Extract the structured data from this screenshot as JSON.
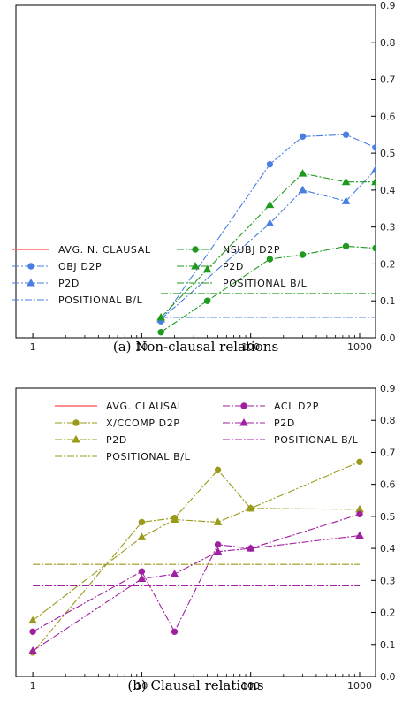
{
  "chart_data": [
    {
      "type": "line",
      "caption": "(a) Non-clausal relations",
      "xscale": "log",
      "xlim": [
        0.7,
        1400
      ],
      "ylim": [
        0,
        0.9
      ],
      "x_ticks": [
        1,
        10,
        100,
        1000
      ],
      "y_ticks": [
        0,
        0.1,
        0.2,
        0.3,
        0.4,
        0.5,
        0.6,
        0.7,
        0.8,
        0.9
      ],
      "y_axis_side": "right",
      "legend_columns": [
        [
          "AVG. N. CLAUSAL",
          "OBJ D2P",
          "P2D",
          "POSITIONAL B/L"
        ],
        [
          "NSUBJ D2P",
          "P2D",
          "POSITIONAL B/L"
        ]
      ],
      "series": [
        {
          "name": "AVG. N. CLAUSAL",
          "color": "#ff6666",
          "style": "solid",
          "marker": "none",
          "points": []
        },
        {
          "name": "OBJ D2P",
          "color": "#4a7fe0",
          "style": "dashdot",
          "marker": "circle",
          "points": [
            [
              15,
              0.045
            ],
            [
              150,
              0.47
            ],
            [
              300,
              0.545
            ],
            [
              750,
              0.55
            ],
            [
              1400,
              0.515
            ]
          ]
        },
        {
          "name": "P2D",
          "color": "#4a7fe0",
          "style": "dashdot",
          "marker": "triangle",
          "points": [
            [
              15,
              0.05
            ],
            [
              150,
              0.31
            ],
            [
              300,
              0.4
            ],
            [
              750,
              0.37
            ],
            [
              1400,
              0.455
            ]
          ]
        },
        {
          "name": "POSITIONAL B/L",
          "color": "#4a7fe0",
          "style": "dashdot",
          "marker": "none",
          "points": [
            [
              15,
              0.055
            ],
            [
              1400,
              0.055
            ]
          ]
        },
        {
          "name": "NSUBJ D2P",
          "color": "#1f9a1f",
          "style": "dashdot",
          "marker": "circle",
          "points": [
            [
              15,
              0.015
            ],
            [
              40,
              0.1
            ],
            [
              150,
              0.213
            ],
            [
              300,
              0.225
            ],
            [
              750,
              0.248
            ],
            [
              1400,
              0.243
            ]
          ]
        },
        {
          "name": "P2D",
          "color": "#1f9a1f",
          "style": "dashdot",
          "marker": "triangle",
          "points": [
            [
              15,
              0.055
            ],
            [
              40,
              0.185
            ],
            [
              150,
              0.36
            ],
            [
              300,
              0.445
            ],
            [
              750,
              0.422
            ],
            [
              1400,
              0.422
            ]
          ]
        },
        {
          "name": "POSITIONAL B/L",
          "color": "#1f9a1f",
          "style": "dashdot",
          "marker": "none",
          "points": [
            [
              15,
              0.12
            ],
            [
              1400,
              0.12
            ]
          ]
        }
      ]
    },
    {
      "type": "line",
      "caption": "(b) Clausal relations",
      "xscale": "log",
      "xlim": [
        0.7,
        1400
      ],
      "ylim": [
        0,
        0.9
      ],
      "x_ticks": [
        1,
        10,
        100,
        1000
      ],
      "y_ticks": [
        0,
        0.1,
        0.2,
        0.3,
        0.4,
        0.5,
        0.6,
        0.7,
        0.8,
        0.9
      ],
      "y_axis_side": "right",
      "legend_columns": [
        [
          "AVG. CLAUSAL",
          "X/CCOMP D2P",
          "P2D",
          "POSITIONAL B/L"
        ],
        [
          "ACL D2P",
          "P2D",
          "POSITIONAL B/L"
        ]
      ],
      "series": [
        {
          "name": "AVG. CLAUSAL",
          "color": "#ff6666",
          "style": "solid",
          "marker": "none",
          "points": []
        },
        {
          "name": "X/CCOMP D2P",
          "color": "#9a9a1a",
          "style": "dashdot",
          "marker": "circle",
          "points": [
            [
              1,
              0.075
            ],
            [
              10,
              0.482
            ],
            [
              20,
              0.495
            ],
            [
              50,
              0.645
            ],
            [
              100,
              0.525
            ],
            [
              1000,
              0.67
            ]
          ]
        },
        {
          "name": "P2D",
          "color": "#9a9a1a",
          "style": "dashdot",
          "marker": "triangle",
          "points": [
            [
              1,
              0.175
            ],
            [
              10,
              0.435
            ],
            [
              20,
              0.49
            ],
            [
              50,
              0.482
            ],
            [
              100,
              0.525
            ],
            [
              1000,
              0.522
            ]
          ]
        },
        {
          "name": "POSITIONAL B/L",
          "color": "#9a9a1a",
          "style": "dashdot",
          "marker": "none",
          "points": [
            [
              1,
              0.35
            ],
            [
              1000,
              0.35
            ]
          ]
        },
        {
          "name": "ACL D2P",
          "color": "#a020a0",
          "style": "dashdot",
          "marker": "circle",
          "points": [
            [
              1,
              0.14
            ],
            [
              10,
              0.328
            ],
            [
              20,
              0.14
            ],
            [
              50,
              0.412
            ],
            [
              100,
              0.4
            ],
            [
              1000,
              0.507
            ]
          ]
        },
        {
          "name": "P2D",
          "color": "#a020a0",
          "style": "dashdot",
          "marker": "triangle",
          "points": [
            [
              1,
              0.08
            ],
            [
              10,
              0.305
            ],
            [
              20,
              0.32
            ],
            [
              50,
              0.39
            ],
            [
              100,
              0.4
            ],
            [
              1000,
              0.44
            ]
          ]
        },
        {
          "name": "POSITIONAL B/L",
          "color": "#a020a0",
          "style": "dashdot",
          "marker": "none",
          "points": [
            [
              1,
              0.283
            ],
            [
              1000,
              0.283
            ]
          ]
        }
      ]
    }
  ]
}
